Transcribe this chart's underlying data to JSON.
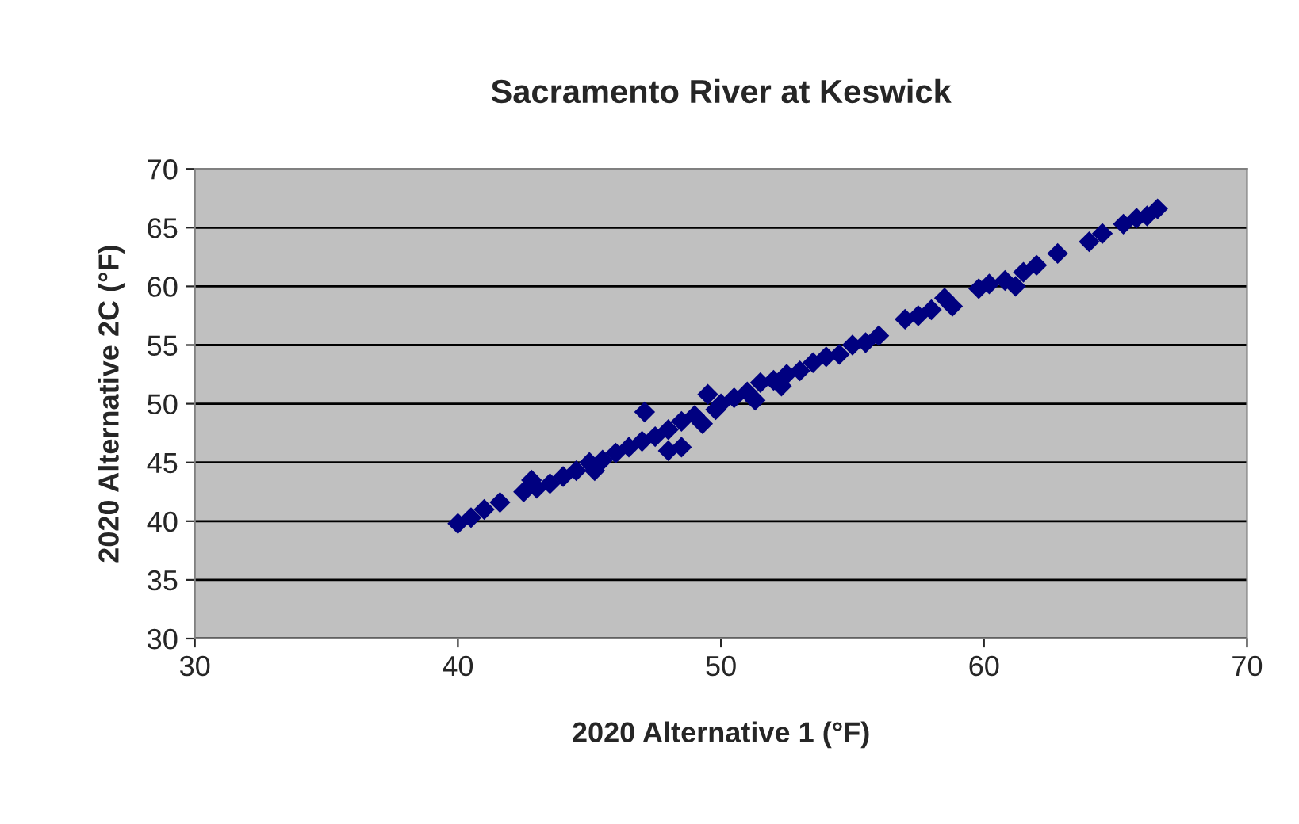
{
  "chart_data": {
    "type": "scatter",
    "title": "Sacramento River at Keswick",
    "xlabel": "2020 Alternative 1 (°F)",
    "ylabel": "2020 Alternative 2C (°F)",
    "x": [
      40,
      40.5,
      41,
      41.6,
      42.5,
      42.8,
      43,
      43.5,
      44,
      44.5,
      45,
      45.2,
      45.5,
      46,
      46.5,
      47,
      47.1,
      47.5,
      48,
      48,
      48.5,
      48.5,
      49,
      49.3,
      49.5,
      49.8,
      50,
      50.5,
      51,
      51.3,
      51.5,
      52,
      52.3,
      52.5,
      53,
      53.5,
      54,
      54.5,
      55,
      55.5,
      56,
      57,
      57.5,
      58,
      58.5,
      58.8,
      59.8,
      60.2,
      60.8,
      61.2,
      61.5,
      62,
      62.8,
      64,
      64.5,
      65.3,
      65.8,
      66.2,
      66.6
    ],
    "series": [
      {
        "color": "#000080",
        "values": [
          39.8,
          40.3,
          41,
          41.6,
          42.5,
          43.5,
          42.8,
          43.2,
          43.8,
          44.3,
          45,
          44.3,
          45.2,
          45.8,
          46.3,
          46.8,
          49.3,
          47.2,
          47.8,
          46,
          46.3,
          48.5,
          49,
          48.3,
          50.8,
          49.5,
          50,
          50.5,
          51,
          50.3,
          51.8,
          52,
          51.5,
          52.5,
          52.8,
          53.5,
          54,
          54.2,
          55,
          55.2,
          55.8,
          57.2,
          57.5,
          58,
          59,
          58.3,
          59.8,
          60.2,
          60.5,
          60,
          61.2,
          61.8,
          62.8,
          63.8,
          64.5,
          65.3,
          65.8,
          66,
          66.6
        ]
      }
    ],
    "xlim": [
      30,
      70
    ],
    "xticks": [
      30,
      40,
      50,
      60,
      70
    ],
    "ylim": [
      30,
      70
    ],
    "yticks": [
      30,
      35,
      40,
      45,
      50,
      55,
      60,
      65,
      70
    ],
    "grid": "y",
    "marker": "diamond",
    "legend": false
  }
}
